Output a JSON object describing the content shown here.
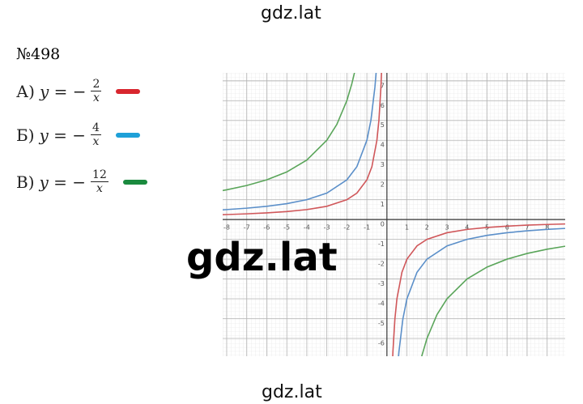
{
  "header": {
    "watermark_top": "gdz.lat",
    "watermark_center": "gdz.lat",
    "watermark_bottom": "gdz.lat"
  },
  "problem": "№498",
  "formulas": [
    {
      "label": "А)",
      "lhs": "y = −",
      "numerator": "2",
      "denominator": "x",
      "color": "#d8262e"
    },
    {
      "label": "Б)",
      "lhs": "y = −",
      "numerator": "4",
      "denominator": "x",
      "color": "#1ea0d8"
    },
    {
      "label": "В)",
      "lhs": "y = −",
      "numerator": "12",
      "denominator": "x",
      "color": "#1a8a3e"
    }
  ],
  "chart_data": {
    "type": "line",
    "grid": true,
    "xlim": [
      -8.2,
      8.9
    ],
    "ylim": [
      -6.9,
      7.4
    ],
    "xticks": [
      -8,
      -7,
      -6,
      -5,
      -4,
      -3,
      -2,
      -1,
      1,
      2,
      3,
      4,
      5,
      6,
      7,
      8
    ],
    "yticks": [
      -6,
      -5,
      -4,
      -3,
      -2,
      -1,
      0,
      1,
      2,
      3,
      4,
      5,
      6,
      7
    ],
    "series": [
      {
        "color": "#d0575a",
        "x": [
          -8.2,
          -8,
          -7,
          -6,
          -5,
          -4,
          -3,
          -2,
          -1.5,
          -1,
          -0.75,
          -0.5,
          -0.4,
          -0.3,
          -0.27,
          0,
          0.27,
          0.3,
          0.4,
          0.5,
          0.75,
          1,
          1.5,
          2,
          3,
          4,
          5,
          6,
          7,
          8,
          8.9
        ],
        "values": [
          0.2439,
          0.25,
          0.2857,
          0.3333,
          0.4,
          0.5,
          0.6667,
          1,
          1.3333,
          2,
          2.6667,
          4,
          5,
          6.6667,
          7.4074,
          null,
          -7.4074,
          -6.6667,
          -5,
          -4,
          -2.6667,
          -2,
          -1.3333,
          -1,
          -0.6667,
          -0.5,
          -0.4,
          -0.3333,
          -0.2857,
          -0.25,
          -0.2247
        ]
      },
      {
        "color": "#5b8fc9",
        "x": [
          -8.2,
          -8,
          -7,
          -6,
          -5,
          -4,
          -3,
          -2,
          -1.5,
          -1,
          -0.8,
          -0.6,
          -0.54,
          0,
          0.54,
          0.6,
          0.8,
          1,
          1.5,
          2,
          3,
          4,
          5,
          6,
          7,
          8,
          8.9
        ],
        "values": [
          0.4878,
          0.5,
          0.5714,
          0.6667,
          0.8,
          1,
          1.3333,
          2,
          2.6667,
          4,
          5,
          6.6667,
          7.4074,
          null,
          -7.4074,
          -6.6667,
          -5,
          -4,
          -2.6667,
          -2,
          -1.3333,
          -1,
          -0.8,
          -0.6667,
          -0.5714,
          -0.5,
          -0.4494
        ]
      },
      {
        "color": "#5aa55a",
        "x": [
          -8.2,
          -8,
          -7,
          -6,
          -5,
          -4,
          -3,
          -2.5,
          -2,
          -1.75,
          -1.62,
          0,
          1.62,
          1.75,
          2,
          2.5,
          3,
          4,
          5,
          6,
          7,
          8,
          8.9
        ],
        "values": [
          1.4634,
          1.5,
          1.7143,
          2,
          2.4,
          3,
          4,
          4.8,
          6,
          6.8571,
          7.4074,
          null,
          -7.4074,
          -6.8571,
          -6,
          -4.8,
          -4,
          -3,
          -2.4,
          -2,
          -1.7143,
          -1.5,
          -1.3483
        ]
      }
    ]
  }
}
